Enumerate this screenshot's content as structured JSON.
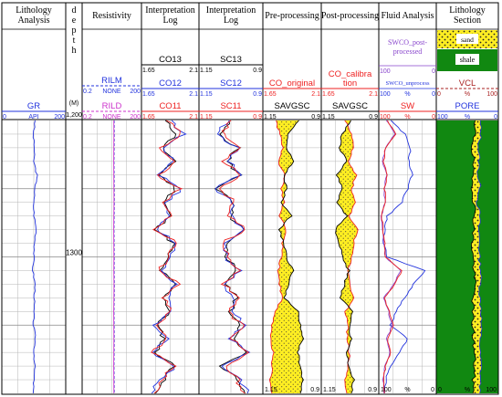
{
  "chart_data": {
    "type": "line",
    "depth_ylim": [
      1200,
      1400
    ],
    "colors": {
      "red": "#ee2222",
      "blue": "#2233dd",
      "black": "#000000",
      "magenta": "#cc33cc",
      "purple": "#8844cc",
      "darkred": "#aa2222",
      "yellow": "#ffee22",
      "green": "#118811",
      "grid": "#b5b5b5"
    },
    "tracks": [
      {
        "key": "lith",
        "title": [
          "Lithology",
          "Analysis"
        ],
        "curves": [
          {
            "name": "GR",
            "unit": "API",
            "min": "0",
            "max": "200",
            "color": "blue"
          }
        ]
      },
      {
        "key": "depth",
        "title": [
          "d",
          "e",
          "p",
          "t",
          "h"
        ],
        "unit": "(M)",
        "depth_labels": [
          "1,200",
          "1300"
        ]
      },
      {
        "key": "res",
        "title": [
          "Resistivity"
        ],
        "curves": [
          {
            "name": "RILM",
            "unit": "NONE",
            "min": "0.2",
            "max": "200",
            "color": "blue"
          },
          {
            "name": "RILD",
            "unit": "NONE",
            "min": "0.2",
            "max": "200",
            "color": "magenta"
          }
        ]
      },
      {
        "key": "interpCO",
        "title": [
          "Interpretation",
          "Log"
        ],
        "curves": [
          {
            "name": "CO13",
            "min": "1.65",
            "max": "2.1",
            "color": "black"
          },
          {
            "name": "CO12",
            "min": "1.65",
            "max": "2.1",
            "color": "blue"
          },
          {
            "name": "CO11",
            "min": "1.65",
            "max": "2.1",
            "color": "red"
          }
        ]
      },
      {
        "key": "interpSC",
        "title": [
          "Interpretation",
          "Log"
        ],
        "curves": [
          {
            "name": "SC13",
            "min": "1.15",
            "max": "0.9",
            "color": "black"
          },
          {
            "name": "SC12",
            "min": "1.15",
            "max": "0.9",
            "color": "blue"
          },
          {
            "name": "SC11",
            "min": "1.15",
            "max": "0.9",
            "color": "red"
          }
        ]
      },
      {
        "key": "pre",
        "title": [
          "Pre-processing"
        ],
        "curves": [
          {
            "name": "CO_original",
            "min": "1.65",
            "max": "2.1",
            "color": "red"
          },
          {
            "name": "SAVGSC",
            "min": "1.15",
            "max": "0.9",
            "color": "black"
          }
        ]
      },
      {
        "key": "post",
        "title": [
          "Post-processing"
        ],
        "curves": [
          {
            "name": [
              "CO_calibra",
              "tion"
            ],
            "min": "1.65",
            "max": "2.1",
            "color": "red"
          },
          {
            "name": "SAVGSC",
            "min": "1.15",
            "max": "0.9",
            "color": "black"
          }
        ]
      },
      {
        "key": "fluid",
        "title": [
          "Fluid Analysis"
        ],
        "curves": [
          {
            "name": [
              "SWCO_post-",
              "processed"
            ],
            "min": "100",
            "unit": "%",
            "max": "0",
            "color": "purple"
          },
          {
            "name": "SWCO_unprocess",
            "min": "100",
            "unit": "%",
            "max": "0",
            "color": "blue"
          },
          {
            "name": "SW",
            "min": "100",
            "unit": "%",
            "max": "0",
            "color": "red"
          }
        ]
      },
      {
        "key": "section",
        "title": [
          "Lithology",
          "Section"
        ],
        "legend": [
          "sand",
          "shale"
        ],
        "curves": [
          {
            "name": "VCL",
            "min": "0",
            "unit": "%",
            "max": "100",
            "color": "darkred"
          },
          {
            "name": "PORE",
            "min": "100",
            "unit": "%",
            "max": "0",
            "color": "blue"
          }
        ]
      }
    ],
    "bottom_scales": [
      {
        "track": "pre",
        "min": "1.15",
        "max": "0.9"
      },
      {
        "track": "post",
        "min": "1.15",
        "max": "0.9"
      },
      {
        "track": "fluid",
        "min": "100",
        "unit": "%",
        "max": "0"
      },
      {
        "track": "section",
        "min": "0",
        "unit": "%",
        "max": "100"
      }
    ],
    "logs": {
      "depth": [
        1200,
        1210,
        1220,
        1230,
        1240,
        1250,
        1260,
        1270,
        1280,
        1290,
        1300,
        1310,
        1320,
        1330,
        1340,
        1350,
        1360,
        1370,
        1380,
        1390,
        1400
      ],
      "GR": [
        105,
        98,
        102,
        100,
        110,
        104,
        99,
        101,
        108,
        103,
        100,
        97,
        104,
        102,
        100,
        99,
        105,
        101,
        103,
        100,
        98
      ],
      "RILD": [
        8.0,
        8.1,
        8.0,
        7.9,
        8.0,
        8.1,
        8.2,
        8.0,
        7.9,
        8.0,
        8.1,
        8.0,
        8.2,
        8.1,
        7.9,
        8.0,
        8.1,
        8.0,
        7.9,
        8.0,
        8.1
      ],
      "RILM": [
        8.3,
        8.4,
        8.3,
        8.2,
        8.3,
        8.4,
        8.5,
        8.3,
        8.2,
        8.3,
        8.4,
        8.3,
        8.5,
        8.4,
        8.2,
        8.3,
        8.4,
        8.3,
        8.2,
        8.3,
        8.4
      ],
      "CO11": [
        1.85,
        1.96,
        1.8,
        1.92,
        1.78,
        1.95,
        1.82,
        1.88,
        1.76,
        1.93,
        1.86,
        1.79,
        1.94,
        1.83,
        1.89,
        1.77,
        1.84,
        1.74,
        1.9,
        1.81,
        1.75
      ],
      "CO12": [
        1.87,
        1.98,
        1.82,
        1.9,
        1.79,
        1.97,
        1.84,
        1.86,
        1.78,
        1.91,
        1.88,
        1.81,
        1.92,
        1.85,
        1.87,
        1.75,
        1.86,
        1.72,
        1.92,
        1.79,
        1.73
      ],
      "CO13": [
        1.83,
        1.93,
        1.81,
        1.9,
        1.79,
        1.92,
        1.83,
        1.87,
        1.77,
        1.9,
        1.85,
        1.8,
        1.91,
        1.83,
        1.87,
        1.77,
        1.83,
        1.76,
        1.91,
        1.82,
        1.76
      ],
      "SC11": [
        1.02,
        1.06,
        0.99,
        1.05,
        0.98,
        1.07,
        1.01,
        1.04,
        0.97,
        1.06,
        1.03,
        1.0,
        1.05,
        0.99,
        1.04,
        0.98,
        1.02,
        0.96,
        1.05,
        1.0,
        0.97
      ],
      "SC12": [
        1.04,
        1.08,
        1.0,
        1.03,
        0.99,
        1.09,
        1.02,
        1.02,
        0.98,
        1.04,
        1.05,
        0.99,
        1.06,
        1.01,
        1.02,
        0.97,
        1.03,
        0.95,
        1.07,
        0.99,
        0.96
      ],
      "SC13": [
        1.03,
        1.07,
        1.0,
        1.04,
        0.99,
        1.08,
        1.02,
        1.03,
        0.98,
        1.05,
        1.04,
        1.0,
        1.05,
        1.0,
        1.03,
        0.98,
        1.02,
        0.97,
        1.06,
        1.0,
        0.97
      ],
      "CO_original": [
        1.75,
        1.78,
        1.8,
        1.77,
        1.82,
        1.79,
        1.81,
        1.78,
        1.83,
        1.8,
        1.79,
        1.77,
        1.78,
        1.8,
        1.74,
        1.72,
        1.71,
        1.73,
        1.72,
        1.71,
        1.72
      ],
      "CO_calibration": [
        1.84,
        1.88,
        1.9,
        1.86,
        1.92,
        1.89,
        1.91,
        1.87,
        1.93,
        1.9,
        1.89,
        1.86,
        1.88,
        1.9,
        1.84,
        1.86,
        1.85,
        1.87,
        1.86,
        1.84,
        1.85
      ],
      "SAVGSC_pre": [
        1.0,
        1.04,
        1.05,
        1.02,
        1.06,
        1.05,
        1.07,
        1.03,
        1.08,
        1.06,
        1.05,
        1.02,
        1.04,
        1.06,
        1.0,
        0.99,
        0.98,
        1.0,
        0.99,
        0.98,
        0.99
      ],
      "SAVGSC_post": [
        1.02,
        1.06,
        1.07,
        1.04,
        1.08,
        1.06,
        1.08,
        1.04,
        1.09,
        1.07,
        1.06,
        1.03,
        1.05,
        1.07,
        1.01,
        1.03,
        1.02,
        1.04,
        1.03,
        1.01,
        1.02
      ],
      "SW": [
        85,
        70,
        88,
        92,
        85,
        90,
        88,
        95,
        92,
        90,
        88,
        60,
        72,
        90,
        82,
        75,
        85,
        80,
        88,
        92,
        90
      ],
      "SWCO_unprocess": [
        80,
        55,
        45,
        48,
        42,
        50,
        60,
        85,
        90,
        92,
        85,
        20,
        40,
        55,
        70,
        80,
        50,
        65,
        80,
        88,
        90
      ],
      "SWCO_post": [
        86,
        72,
        89,
        93,
        86,
        91,
        89,
        95,
        93,
        91,
        89,
        62,
        74,
        91,
        83,
        77,
        86,
        81,
        89,
        93,
        91
      ],
      "PORE": [
        30,
        28,
        32,
        31,
        33,
        29,
        34,
        30,
        32,
        30,
        31,
        28,
        29,
        30,
        27,
        28,
        29,
        30,
        28,
        29,
        30
      ],
      "VCL": [
        60,
        62,
        58,
        60,
        57,
        59,
        61,
        62,
        60,
        58,
        59,
        61,
        62,
        60,
        58,
        59,
        60,
        61,
        62,
        60,
        59
      ]
    }
  }
}
